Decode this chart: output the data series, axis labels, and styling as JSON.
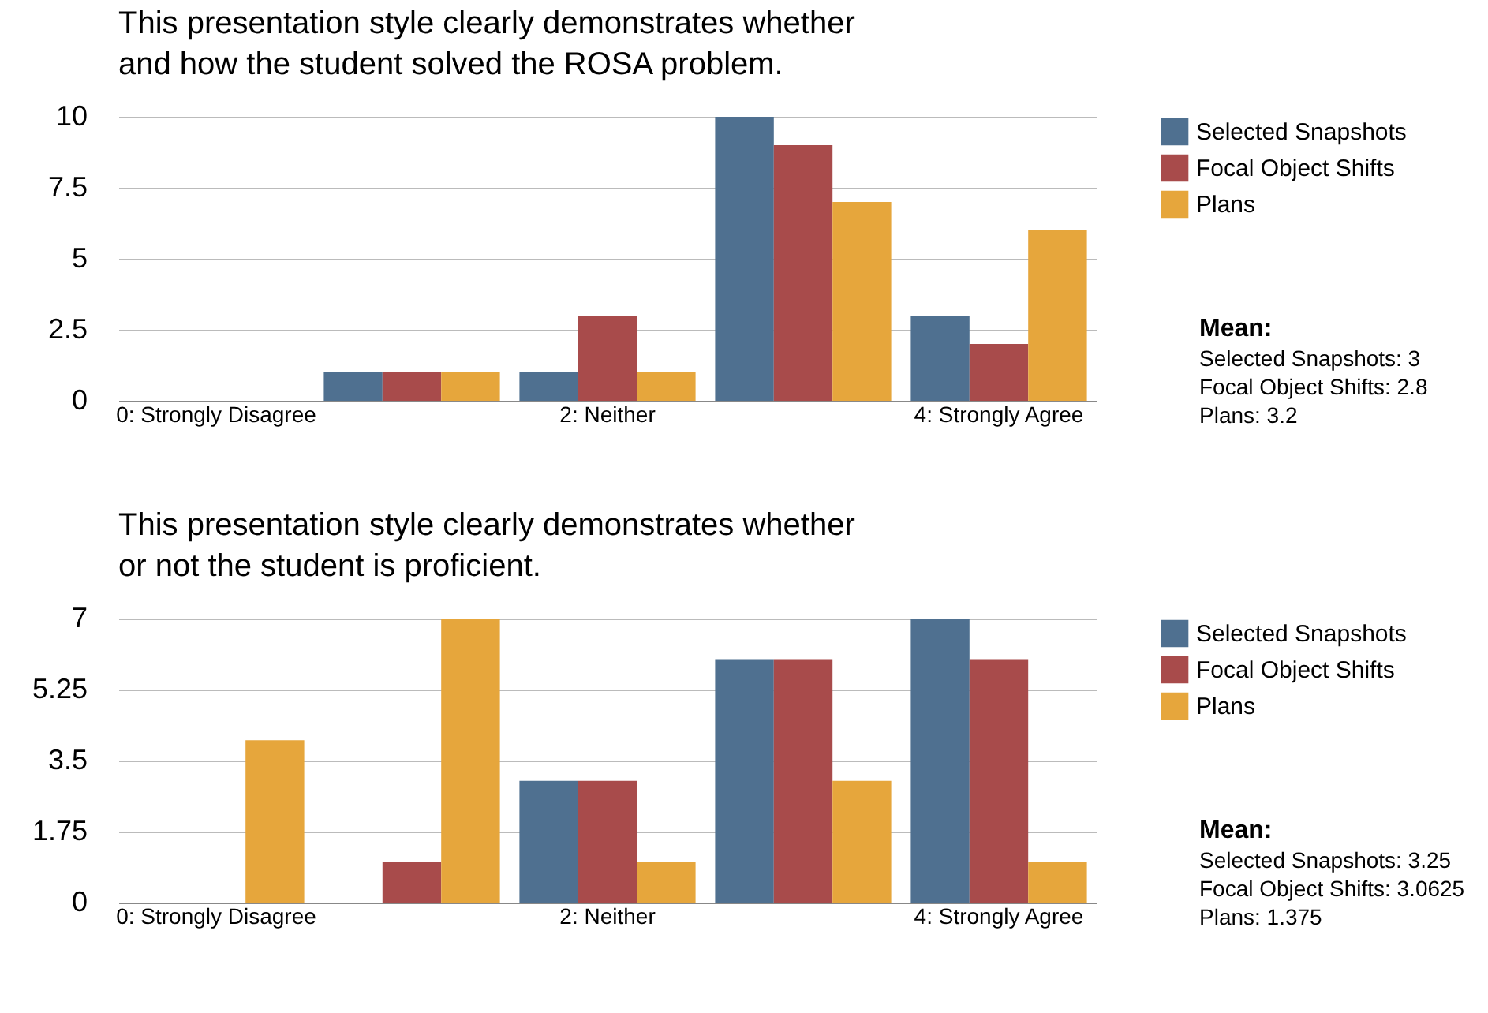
{
  "chart_data": [
    {
      "type": "bar",
      "title": "This presentation style clearly demonstrates whether and how the student solved the ROSA problem.",
      "categories": [
        "0: Strongly Disagree",
        null,
        "2: Neither",
        null,
        "4: Strongly Agree"
      ],
      "series": [
        {
          "name": "Selected Snapshots",
          "color": "#4f7090",
          "values": [
            0,
            1,
            1,
            10,
            3
          ]
        },
        {
          "name": "Focal Object Shifts",
          "color": "#a84b4b",
          "values": [
            0,
            1,
            3,
            9,
            2
          ]
        },
        {
          "name": "Plans",
          "color": "#e6a63c",
          "values": [
            0,
            1,
            1,
            7,
            6
          ]
        }
      ],
      "ylim": [
        0,
        10
      ],
      "yticks": [
        0,
        2.5,
        5,
        7.5,
        10
      ],
      "grid": "y",
      "legend": "right",
      "annotations": [
        "Mean:",
        "Selected Snapshots: 3",
        "Focal Object Shifts: 2.8",
        "Plans: 3.2"
      ]
    },
    {
      "type": "bar",
      "title": "This presentation style clearly demonstrates whether or not the student is proficient.",
      "categories": [
        "0: Strongly Disagree",
        null,
        "2: Neither",
        null,
        "4: Strongly Agree"
      ],
      "series": [
        {
          "name": "Selected Snapshots",
          "color": "#4f7090",
          "values": [
            0,
            0,
            3,
            6,
            7
          ]
        },
        {
          "name": "Focal Object Shifts",
          "color": "#a84b4b",
          "values": [
            0,
            1,
            3,
            6,
            6
          ]
        },
        {
          "name": "Plans",
          "color": "#e6a63c",
          "values": [
            4,
            7,
            1,
            3,
            1
          ]
        }
      ],
      "ylim": [
        0,
        7
      ],
      "yticks": [
        0,
        1.75,
        3.5,
        5.25,
        7
      ],
      "grid": "y",
      "legend": "right",
      "annotations": [
        "Mean:",
        "Selected Snapshots: 3.25",
        "Focal Object Shifts: 3.0625",
        "Plans: 1.375"
      ]
    }
  ]
}
